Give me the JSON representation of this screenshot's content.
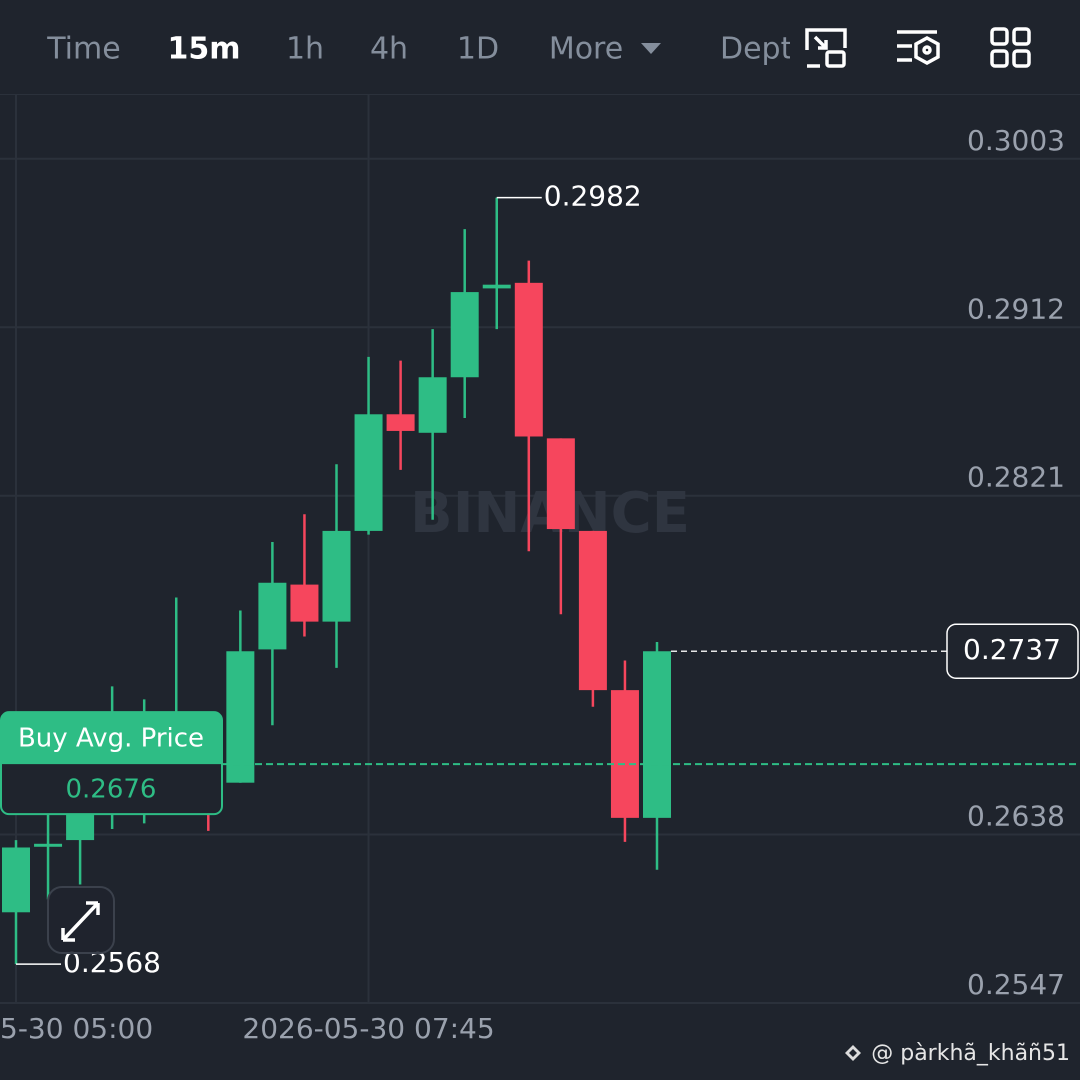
{
  "toolbar": {
    "tabs": [
      "Time",
      "15m",
      "1h",
      "4h",
      "1D",
      "More",
      "Dept"
    ],
    "active_tab": 1
  },
  "chart_data": {
    "type": "candlestick",
    "watermark": "BINANCE",
    "categories": [
      "5-30 05:00",
      null,
      null,
      null,
      null,
      null,
      null,
      null,
      null,
      null,
      null,
      "2026-05-30 07:45",
      null,
      null,
      null,
      null,
      null,
      null,
      null,
      null,
      null
    ],
    "series": [
      {
        "up_color": "#2ebd85",
        "down_color": "#f6465d",
        "open": [
          0.2596,
          0.2633,
          0.2635,
          0.2649,
          0.2668,
          0.267,
          0.2678,
          0.2666,
          0.2738,
          0.2773,
          0.2753,
          0.2802,
          0.2865,
          0.2855,
          0.2885,
          0.2933,
          0.2936,
          0.2852,
          0.2802,
          0.2716,
          0.2647
        ],
        "high": [
          0.2635,
          0.2649,
          0.2678,
          0.2718,
          0.2711,
          0.2766,
          0.2692,
          0.2759,
          0.2796,
          0.2811,
          0.2838,
          0.2896,
          0.2894,
          0.2911,
          0.2965,
          0.2982,
          0.2948,
          0.2852,
          0.2802,
          0.2732,
          0.2742
        ],
        "low": [
          0.2568,
          0.2603,
          0.2611,
          0.2641,
          0.2644,
          0.2651,
          0.264,
          0.2666,
          0.2697,
          0.2745,
          0.2728,
          0.28,
          0.2835,
          0.2808,
          0.2863,
          0.2911,
          0.2791,
          0.2757,
          0.2707,
          0.2634,
          0.2619
        ],
        "close": [
          0.2631,
          0.2633,
          0.2662,
          0.2676,
          0.2678,
          0.2687,
          0.2662,
          0.2737,
          0.2774,
          0.2753,
          0.2802,
          0.2865,
          0.2856,
          0.2885,
          0.2931,
          0.2935,
          0.2853,
          0.2803,
          0.2716,
          0.2647,
          0.2737
        ]
      }
    ],
    "ylim": [
      0.2547,
      0.3038
    ],
    "yticks": [
      0.3003,
      0.2912,
      0.2821,
      0.2638,
      0.2547
    ],
    "grid": true,
    "high_marker": 0.2982,
    "low_marker": 0.2568,
    "last_price": 0.2737,
    "buy_avg": {
      "label": "Buy Avg. Price",
      "value": 0.2676
    }
  },
  "footer": {
    "user": "@ pàrkhã_khãñ51"
  }
}
